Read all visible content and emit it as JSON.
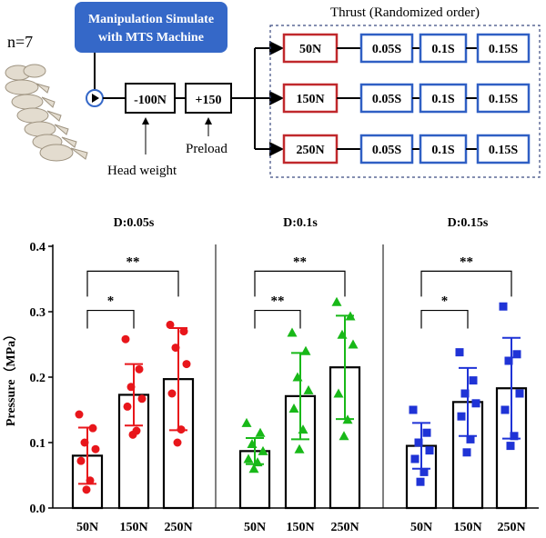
{
  "protocol": {
    "n_label": "n=7",
    "title_box": {
      "line1": "Manipulation Simulate",
      "line2": "with MTS Machine"
    },
    "head_weight_box": "-100N",
    "preload_box": "+150",
    "head_weight_label": "Head weight",
    "preload_label": "Preload",
    "thrust_title": "Thrust (Randomized order)",
    "rows": [
      {
        "force": "50N",
        "durations": [
          "0.05S",
          "0.1S",
          "0.15S"
        ]
      },
      {
        "force": "150N",
        "durations": [
          "0.05S",
          "0.1S",
          "0.15S"
        ]
      },
      {
        "force": "250N",
        "durations": [
          "0.05S",
          "0.1S",
          "0.15S"
        ]
      }
    ],
    "colors": {
      "title_box": "#3568c8",
      "force_border": "#c0282c",
      "duration_border": "#2f5fc4",
      "dashed_border": "#3b4a80"
    }
  },
  "chart_data": {
    "type": "bar",
    "ylabel": "Pressure（MPa）",
    "ylim": [
      0,
      0.4
    ],
    "yticks": [
      "0.0",
      "0.1",
      "0.2",
      "0.3",
      "0.4"
    ],
    "panels": [
      {
        "title": "D:0.05s",
        "color": "#e8161b",
        "marker": "circle",
        "categories": [
          "50N",
          "150N",
          "250N"
        ],
        "values": [
          0.08,
          0.173,
          0.197
        ],
        "sd": [
          0.043,
          0.047,
          0.078
        ],
        "points": [
          [
            0.143,
            0.122,
            0.1,
            0.09,
            0.072,
            0.042,
            0.028
          ],
          [
            0.258,
            0.212,
            0.185,
            0.167,
            0.155,
            0.118,
            0.112
          ],
          [
            0.28,
            0.27,
            0.245,
            0.22,
            0.175,
            0.12,
            0.1
          ]
        ],
        "significance": [
          {
            "from": 0,
            "to": 1,
            "label": "*",
            "y": 0.302
          },
          {
            "from": 0,
            "to": 2,
            "label": "**",
            "y": 0.362
          }
        ]
      },
      {
        "title": "D:0.1s",
        "color": "#18b818",
        "marker": "triangle",
        "categories": [
          "50N",
          "150N",
          "250N"
        ],
        "values": [
          0.087,
          0.171,
          0.215
        ],
        "sd": [
          0.02,
          0.066,
          0.079
        ],
        "points": [
          [
            0.13,
            0.115,
            0.098,
            0.087,
            0.075,
            0.07,
            0.06
          ],
          [
            0.268,
            0.24,
            0.2,
            0.18,
            0.152,
            0.12,
            0.09
          ],
          [
            0.315,
            0.293,
            0.265,
            0.25,
            0.175,
            0.135,
            0.11
          ]
        ],
        "significance": [
          {
            "from": 0,
            "to": 1,
            "label": "**",
            "y": 0.302
          },
          {
            "from": 0,
            "to": 2,
            "label": "**",
            "y": 0.362
          }
        ]
      },
      {
        "title": "D:0.15s",
        "color": "#1f33d6",
        "marker": "square",
        "categories": [
          "50N",
          "150N",
          "250N"
        ],
        "values": [
          0.095,
          0.162,
          0.183
        ],
        "sd": [
          0.035,
          0.052,
          0.077
        ],
        "points": [
          [
            0.15,
            0.115,
            0.1,
            0.088,
            0.075,
            0.055,
            0.04
          ],
          [
            0.238,
            0.195,
            0.175,
            0.16,
            0.14,
            0.105,
            0.085
          ],
          [
            0.308,
            0.235,
            0.225,
            0.175,
            0.15,
            0.11,
            0.095
          ]
        ],
        "significance": [
          {
            "from": 0,
            "to": 1,
            "label": "*",
            "y": 0.302
          },
          {
            "from": 0,
            "to": 2,
            "label": "**",
            "y": 0.362
          }
        ]
      }
    ]
  }
}
